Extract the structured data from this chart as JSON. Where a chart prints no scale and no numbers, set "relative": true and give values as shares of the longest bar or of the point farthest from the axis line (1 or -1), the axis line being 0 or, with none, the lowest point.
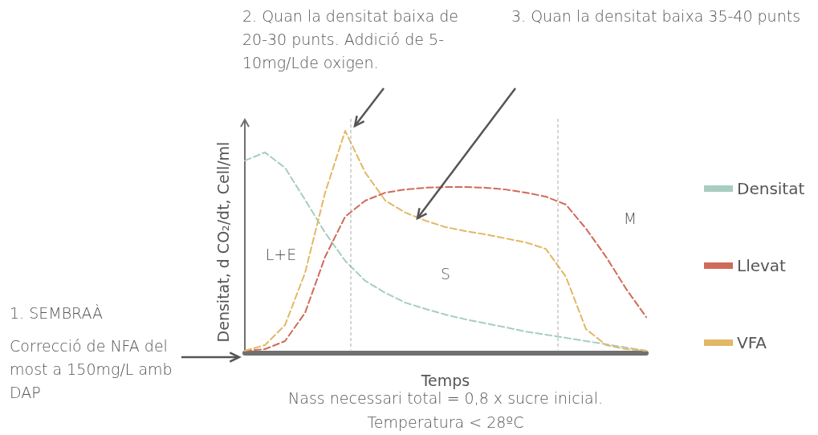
{
  "chart_data": {
    "type": "line",
    "relative": true,
    "line_style": "dashed",
    "marker": "none",
    "grid": false,
    "legend": "right",
    "ylabel": "Densitat, d CO₂/dt, Cell/ml",
    "xlabel": "Temps",
    "categories": [
      null,
      null,
      null,
      null,
      null,
      null,
      null,
      null,
      null,
      null,
      null,
      null,
      null,
      null,
      null,
      null,
      null,
      null,
      null,
      null,
      null
    ],
    "series": [
      {
        "name": "Densitat",
        "color": "#a7cdc0",
        "values": [
          0.866,
          0.903,
          0.834,
          0.69,
          0.542,
          0.415,
          0.325,
          0.271,
          0.227,
          0.199,
          0.173,
          0.152,
          0.134,
          0.116,
          0.097,
          0.083,
          0.069,
          0.054,
          0.04,
          0.025,
          0.011
        ]
      },
      {
        "name": "Llevat",
        "color": "#cf6b5a",
        "values": [
          0.011,
          0.018,
          0.054,
          0.181,
          0.433,
          0.614,
          0.686,
          0.722,
          0.736,
          0.744,
          0.747,
          0.747,
          0.744,
          0.736,
          0.722,
          0.704,
          0.668,
          0.56,
          0.433,
          0.289,
          0.162
        ]
      },
      {
        "name": "VFA",
        "color": "#e2b866",
        "values": [
          0.011,
          0.036,
          0.126,
          0.361,
          0.722,
          1,
          0.812,
          0.686,
          0.632,
          0.596,
          0.567,
          0.549,
          0.534,
          0.516,
          0.498,
          0.469,
          0.343,
          0.108,
          0.036,
          0.018,
          0.011
        ]
      }
    ],
    "annotations": [
      "1. SEMBRAÀ",
      "Correcció de NFA del most a 150mg/L amb DAP",
      "2. Quan la densitat baixa de 20-30 punts. Addició de 5-10mg/Lde oxigen.",
      "3. Quan la densitat baixa 35-40 punts",
      "Nass necessari total  = 0,8 x sucre inicial.",
      "Temperatura < 28ºC",
      "L+E",
      "S",
      "M"
    ]
  }
}
